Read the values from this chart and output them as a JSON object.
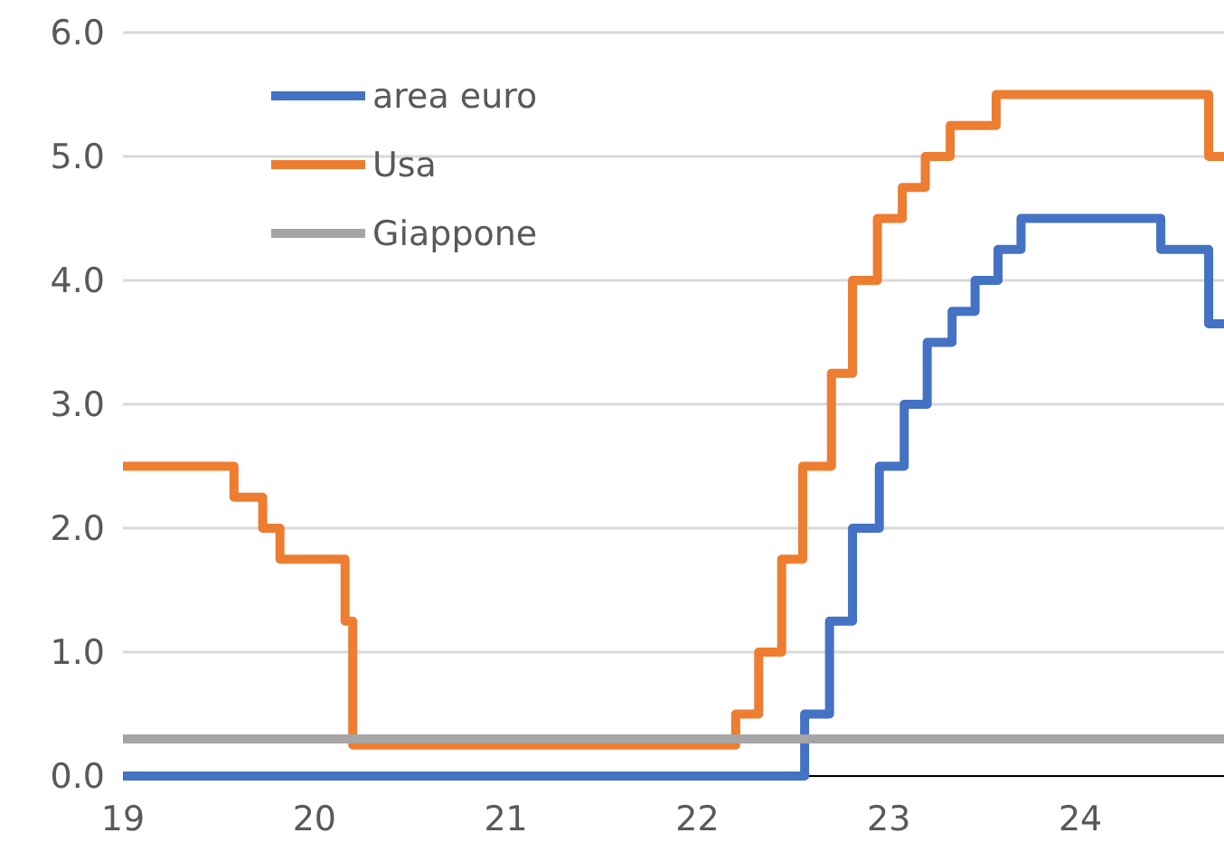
{
  "chart_data": {
    "type": "step",
    "xlim": [
      19,
      24.75
    ],
    "ylim": [
      0,
      6
    ],
    "xticks": [
      19,
      20,
      21,
      22,
      23,
      24
    ],
    "yticks": [
      {
        "value": 0,
        "label": "0.0"
      },
      {
        "value": 1,
        "label": "1.0"
      },
      {
        "value": 2,
        "label": "2.0"
      },
      {
        "value": 3,
        "label": "3.0"
      },
      {
        "value": 4,
        "label": "4.0"
      },
      {
        "value": 5,
        "label": "5.0"
      },
      {
        "value": 6,
        "label": "6.0"
      }
    ],
    "grid": "y",
    "legend": "top left",
    "marker": "none",
    "line_style": "solid",
    "series": [
      {
        "name": "area euro",
        "color": "#4472c4",
        "x": [
          19,
          22.56,
          22.69,
          22.81,
          22.95,
          23.08,
          23.2,
          23.33,
          23.45,
          23.57,
          23.69,
          24.42,
          24.67,
          24.75
        ],
        "values": [
          0,
          0.5,
          1.25,
          2,
          2.5,
          3,
          3.5,
          3.75,
          4,
          4.25,
          4.5,
          4.25,
          3.65,
          3.65
        ]
      },
      {
        "name": "Usa",
        "color": "#ed7d31",
        "x": [
          19,
          19.58,
          19.73,
          19.82,
          20.16,
          20.2,
          22.2,
          22.32,
          22.44,
          22.55,
          22.7,
          22.81,
          22.94,
          23.07,
          23.19,
          23.32,
          23.56,
          24.67,
          24.75
        ],
        "values": [
          2.5,
          2.25,
          2,
          1.75,
          1.25,
          0.25,
          0.5,
          1,
          1.75,
          2.5,
          3.25,
          4,
          4.5,
          4.75,
          5,
          5.25,
          5.5,
          5,
          5
        ]
      },
      {
        "name": "Giappone",
        "color": "#a5a5a5",
        "x": [
          19,
          24.75
        ],
        "values": [
          0.3,
          0.3
        ]
      }
    ]
  }
}
